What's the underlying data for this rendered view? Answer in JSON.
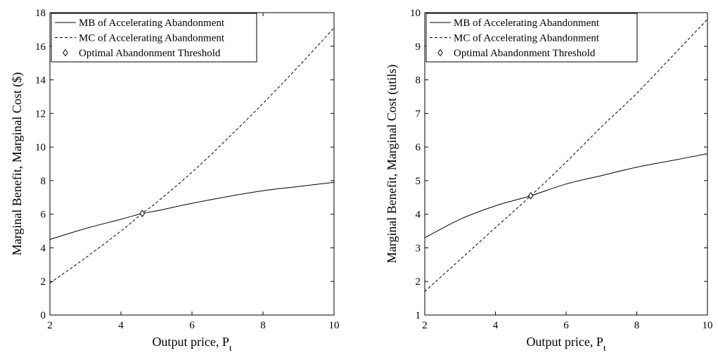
{
  "chart_data": [
    {
      "type": "line",
      "title": "",
      "xlabel": "Output price, P",
      "xlabel_subscript": "t",
      "ylabel": "Marginal Benefit, Marginal Cost ($)",
      "xlim": [
        2,
        10
      ],
      "ylim": [
        0,
        18
      ],
      "xticks": [
        2,
        4,
        6,
        8,
        10
      ],
      "yticks": [
        0,
        2,
        4,
        6,
        8,
        10,
        12,
        14,
        16,
        18
      ],
      "grid": false,
      "legend_position": "top-left",
      "series": [
        {
          "name": "MB of Accelerating Abandonment",
          "style": "solid",
          "x": [
            2,
            3,
            4,
            4.6,
            5,
            6,
            7,
            8,
            9,
            10
          ],
          "y": [
            4.5,
            5.15,
            5.7,
            6.05,
            6.2,
            6.65,
            7.05,
            7.4,
            7.65,
            7.9
          ]
        },
        {
          "name": "MC of Accelerating Abandonment",
          "style": "dashed",
          "x": [
            2,
            3,
            4,
            4.6,
            5,
            6,
            7,
            8,
            9,
            10
          ],
          "y": [
            1.9,
            3.4,
            5.0,
            6.05,
            6.7,
            8.5,
            10.5,
            12.6,
            14.8,
            17.1
          ]
        },
        {
          "name": "Optimal Abandonment Threshold",
          "style": "marker",
          "x": [
            4.6
          ],
          "y": [
            6.05
          ]
        }
      ]
    },
    {
      "type": "line",
      "title": "",
      "xlabel": "Output price, P",
      "xlabel_subscript": "t",
      "ylabel": "Marginal Benefit, Marginal Cost (utils)",
      "xlim": [
        2,
        10
      ],
      "ylim": [
        1,
        10
      ],
      "xticks": [
        2,
        4,
        6,
        8,
        10
      ],
      "yticks": [
        1,
        2,
        3,
        4,
        5,
        6,
        7,
        8,
        9,
        10
      ],
      "grid": false,
      "legend_position": "top-left",
      "series": [
        {
          "name": "MB of Accelerating Abandonment",
          "style": "solid",
          "x": [
            2,
            3,
            4,
            5,
            6,
            7,
            8,
            9,
            10
          ],
          "y": [
            3.3,
            3.85,
            4.25,
            4.55,
            4.9,
            5.15,
            5.4,
            5.6,
            5.8
          ]
        },
        {
          "name": "MC of Accelerating Abandonment",
          "style": "dashed",
          "x": [
            2,
            3,
            4,
            5,
            6,
            7,
            8,
            9,
            10
          ],
          "y": [
            1.7,
            2.65,
            3.6,
            4.55,
            5.55,
            6.6,
            7.6,
            8.7,
            9.8
          ]
        },
        {
          "name": "Optimal Abandonment Threshold",
          "style": "marker",
          "x": [
            5.0
          ],
          "y": [
            4.55
          ]
        }
      ]
    }
  ]
}
